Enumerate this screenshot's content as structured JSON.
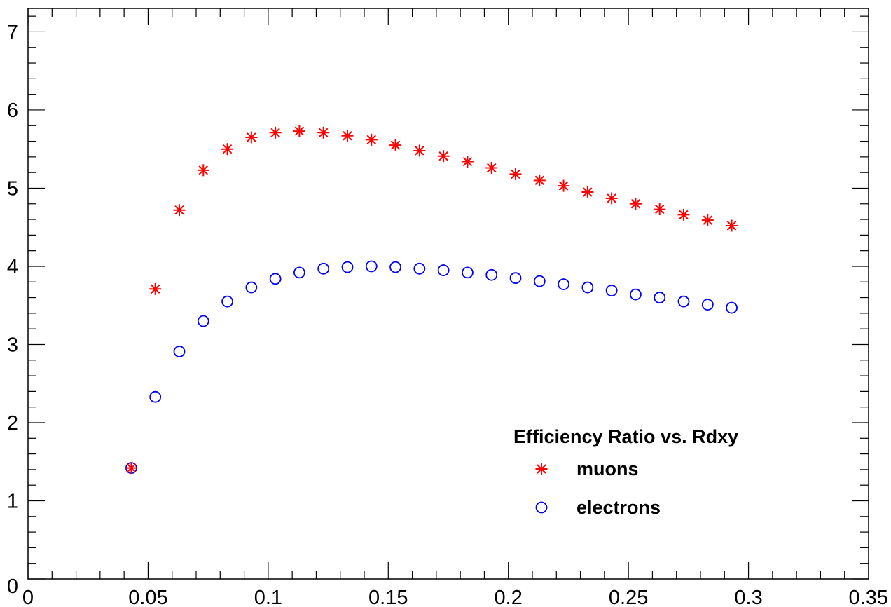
{
  "chart_data": {
    "type": "scatter",
    "title": "",
    "xlabel": "",
    "ylabel": "",
    "xlim": [
      0,
      0.35
    ],
    "ylim": [
      0,
      7.3
    ],
    "x_ticks": [
      "0",
      "0.05",
      "0.1",
      "0.15",
      "0.2",
      "0.25",
      "0.3",
      "0.35"
    ],
    "x_tick_values": [
      0,
      0.05,
      0.1,
      0.15,
      0.2,
      0.25,
      0.3,
      0.35
    ],
    "y_ticks": [
      "0",
      "1",
      "2",
      "3",
      "4",
      "5",
      "6",
      "7"
    ],
    "y_tick_values": [
      0,
      1,
      2,
      3,
      4,
      5,
      6,
      7
    ],
    "grid": false,
    "legend": {
      "title": "Efficiency Ratio vs. Rdxy",
      "placement": "bottom-right"
    },
    "series": [
      {
        "name": "muons",
        "marker": "asterisk",
        "color": "#ff0000",
        "x": [
          0.043,
          0.053,
          0.063,
          0.073,
          0.083,
          0.093,
          0.103,
          0.113,
          0.123,
          0.133,
          0.143,
          0.153,
          0.163,
          0.173,
          0.183,
          0.193,
          0.203,
          0.213,
          0.223,
          0.233,
          0.243,
          0.253,
          0.263,
          0.273,
          0.283,
          0.293
        ],
        "y": [
          1.42,
          3.71,
          4.72,
          5.23,
          5.5,
          5.65,
          5.71,
          5.73,
          5.71,
          5.67,
          5.62,
          5.55,
          5.48,
          5.41,
          5.34,
          5.26,
          5.18,
          5.1,
          5.03,
          4.95,
          4.87,
          4.8,
          4.73,
          4.66,
          4.59,
          4.52
        ]
      },
      {
        "name": "electrons",
        "marker": "open-circle",
        "color": "#0000ff",
        "x": [
          0.043,
          0.053,
          0.063,
          0.073,
          0.083,
          0.093,
          0.103,
          0.113,
          0.123,
          0.133,
          0.143,
          0.153,
          0.163,
          0.173,
          0.183,
          0.193,
          0.203,
          0.213,
          0.223,
          0.233,
          0.243,
          0.253,
          0.263,
          0.273,
          0.283,
          0.293
        ],
        "y": [
          1.42,
          2.33,
          2.91,
          3.3,
          3.55,
          3.73,
          3.84,
          3.92,
          3.97,
          3.99,
          4.0,
          3.99,
          3.97,
          3.95,
          3.92,
          3.89,
          3.85,
          3.81,
          3.77,
          3.73,
          3.69,
          3.64,
          3.6,
          3.55,
          3.51,
          3.47
        ]
      }
    ]
  }
}
